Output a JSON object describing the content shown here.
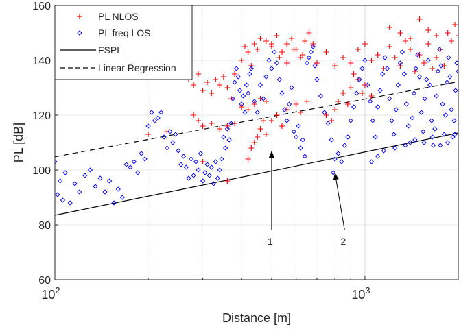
{
  "chart_data": {
    "type": "scatter",
    "title": "",
    "xlabel": "Distance [m]",
    "ylabel": "PL [dB]",
    "xscale": "log",
    "xlim": [
      100,
      2000
    ],
    "ylim": [
      60,
      160
    ],
    "grid": true,
    "legend_position": "top-left",
    "x_major_ticks": [
      {
        "value": 100,
        "base": "10",
        "exp": "2"
      },
      {
        "value": 1000,
        "base": "10",
        "exp": "3"
      }
    ],
    "y_ticks": [
      60,
      80,
      100,
      120,
      140,
      160
    ],
    "series": [
      {
        "name": "PL NLOS",
        "marker": "plus",
        "color": "#ff0000",
        "points": [
          [
            260,
            136
          ],
          [
            270,
            133
          ],
          [
            280,
            131
          ],
          [
            290,
            135
          ],
          [
            300,
            129
          ],
          [
            310,
            132
          ],
          [
            320,
            128
          ],
          [
            330,
            133
          ],
          [
            340,
            131
          ],
          [
            350,
            134
          ],
          [
            360,
            130
          ],
          [
            370,
            126
          ],
          [
            280,
            120
          ],
          [
            290,
            118
          ],
          [
            300,
            116
          ],
          [
            320,
            117
          ],
          [
            340,
            115
          ],
          [
            360,
            116
          ],
          [
            380,
            117
          ],
          [
            400,
            123
          ],
          [
            420,
            122
          ],
          [
            440,
            124
          ],
          [
            460,
            126
          ],
          [
            480,
            125
          ],
          [
            380,
            135
          ],
          [
            400,
            140
          ],
          [
            410,
            145
          ],
          [
            420,
            143
          ],
          [
            430,
            138
          ],
          [
            440,
            146
          ],
          [
            450,
            144
          ],
          [
            460,
            148
          ],
          [
            480,
            147
          ],
          [
            500,
            145
          ],
          [
            520,
            149
          ],
          [
            540,
            143
          ],
          [
            560,
            146
          ],
          [
            580,
            148
          ],
          [
            600,
            144
          ],
          [
            620,
            141
          ],
          [
            640,
            147
          ],
          [
            660,
            150
          ],
          [
            420,
            104
          ],
          [
            430,
            108
          ],
          [
            440,
            110
          ],
          [
            450,
            112
          ],
          [
            460,
            115
          ],
          [
            470,
            118
          ],
          [
            480,
            113
          ],
          [
            500,
            118
          ],
          [
            520,
            120
          ],
          [
            540,
            116
          ],
          [
            560,
            122
          ],
          [
            600,
            124
          ],
          [
            620,
            121
          ],
          [
            650,
            125
          ],
          [
            700,
            139
          ],
          [
            750,
            143
          ],
          [
            800,
            138
          ],
          [
            850,
            141
          ],
          [
            900,
            139
          ],
          [
            950,
            144
          ],
          [
            1000,
            146
          ],
          [
            1050,
            140
          ],
          [
            1100,
            142
          ],
          [
            1150,
            137
          ],
          [
            1200,
            145
          ],
          [
            1250,
            141
          ],
          [
            1300,
            138
          ],
          [
            1350,
            147
          ],
          [
            1400,
            144
          ],
          [
            1450,
            136
          ],
          [
            1500,
            142
          ],
          [
            1550,
            139
          ],
          [
            1600,
            146
          ],
          [
            1650,
            137
          ],
          [
            1700,
            141
          ],
          [
            1750,
            144
          ],
          [
            1800,
            138
          ],
          [
            1850,
            150
          ],
          [
            1900,
            147
          ],
          [
            1950,
            153
          ],
          [
            2000,
            149
          ],
          [
            1200,
            152
          ],
          [
            1300,
            150
          ],
          [
            1400,
            148
          ],
          [
            1500,
            155
          ],
          [
            1600,
            151
          ],
          [
            1700,
            149
          ],
          [
            750,
            120
          ],
          [
            780,
            118
          ],
          [
            800,
            122
          ],
          [
            820,
            125
          ],
          [
            850,
            128
          ],
          [
            880,
            124
          ],
          [
            900,
            130
          ],
          [
            920,
            135
          ],
          [
            950,
            133
          ],
          [
            980,
            128
          ],
          [
            1000,
            131
          ],
          [
            1050,
            127
          ],
          [
            500,
            146
          ],
          [
            530,
            141
          ],
          [
            560,
            139
          ],
          [
            590,
            144
          ],
          [
            630,
            142
          ],
          [
            680,
            146
          ],
          [
            200,
            113
          ],
          [
            230,
            114
          ],
          [
            360,
            96
          ],
          [
            300,
            103
          ]
        ]
      },
      {
        "name": "PL freq LOS",
        "marker": "diamond",
        "color": "#0000ff",
        "points": [
          [
            100,
            103
          ],
          [
            102,
            91
          ],
          [
            104,
            96
          ],
          [
            106,
            89
          ],
          [
            108,
            99
          ],
          [
            112,
            88
          ],
          [
            116,
            95
          ],
          [
            120,
            92
          ],
          [
            125,
            98
          ],
          [
            130,
            100
          ],
          [
            135,
            94
          ],
          [
            140,
            97
          ],
          [
            145,
            92
          ],
          [
            150,
            96
          ],
          [
            155,
            88
          ],
          [
            160,
            93
          ],
          [
            165,
            90
          ],
          [
            170,
            102
          ],
          [
            175,
            101
          ],
          [
            180,
            103
          ],
          [
            185,
            99
          ],
          [
            190,
            106
          ],
          [
            195,
            104
          ],
          [
            200,
            116
          ],
          [
            205,
            121
          ],
          [
            210,
            118
          ],
          [
            215,
            119
          ],
          [
            220,
            121
          ],
          [
            225,
            112
          ],
          [
            230,
            108
          ],
          [
            235,
            114
          ],
          [
            240,
            110
          ],
          [
            245,
            113
          ],
          [
            250,
            107
          ],
          [
            255,
            102
          ],
          [
            260,
            105
          ],
          [
            265,
            101
          ],
          [
            270,
            97
          ],
          [
            275,
            104
          ],
          [
            280,
            98
          ],
          [
            285,
            103
          ],
          [
            290,
            100
          ],
          [
            295,
            106
          ],
          [
            300,
            96
          ],
          [
            305,
            99
          ],
          [
            310,
            102
          ],
          [
            315,
            98
          ],
          [
            320,
            101
          ],
          [
            325,
            95
          ],
          [
            330,
            103
          ],
          [
            335,
            97
          ],
          [
            340,
            100
          ],
          [
            345,
            104
          ],
          [
            350,
            112
          ],
          [
            355,
            108
          ],
          [
            360,
            115
          ],
          [
            365,
            111
          ],
          [
            370,
            117
          ],
          [
            375,
            126
          ],
          [
            380,
            132
          ],
          [
            385,
            137
          ],
          [
            390,
            134
          ],
          [
            395,
            129
          ],
          [
            400,
            124
          ],
          [
            405,
            127
          ],
          [
            410,
            121
          ],
          [
            415,
            131
          ],
          [
            420,
            128
          ],
          [
            425,
            135
          ],
          [
            430,
            137
          ],
          [
            440,
            125
          ],
          [
            450,
            121
          ],
          [
            460,
            131
          ],
          [
            470,
            126
          ],
          [
            480,
            134
          ],
          [
            490,
            140
          ],
          [
            500,
            137
          ],
          [
            510,
            143
          ],
          [
            520,
            139
          ],
          [
            530,
            133
          ],
          [
            540,
            128
          ],
          [
            550,
            122
          ],
          [
            560,
            118
          ],
          [
            570,
            124
          ],
          [
            580,
            130
          ],
          [
            590,
            114
          ],
          [
            600,
            112
          ],
          [
            610,
            116
          ],
          [
            620,
            108
          ],
          [
            630,
            111
          ],
          [
            640,
            105
          ],
          [
            650,
            139
          ],
          [
            660,
            141
          ],
          [
            670,
            143
          ],
          [
            680,
            145
          ],
          [
            690,
            138
          ],
          [
            700,
            133
          ],
          [
            720,
            127
          ],
          [
            740,
            121
          ],
          [
            760,
            117
          ],
          [
            780,
            111
          ],
          [
            790,
            99
          ],
          [
            800,
            104
          ],
          [
            820,
            106
          ],
          [
            840,
            103
          ],
          [
            860,
            109
          ],
          [
            880,
            112
          ],
          [
            900,
            118
          ],
          [
            920,
            123
          ],
          [
            940,
            128
          ],
          [
            960,
            133
          ],
          [
            980,
            137
          ],
          [
            1000,
            140
          ],
          [
            1020,
            131
          ],
          [
            1040,
            125
          ],
          [
            1060,
            118
          ],
          [
            1080,
            112
          ],
          [
            1100,
            123
          ],
          [
            1120,
            129
          ],
          [
            1140,
            135
          ],
          [
            1160,
            141
          ],
          [
            1180,
            137
          ],
          [
            1200,
            126
          ],
          [
            1220,
            118
          ],
          [
            1240,
            113
          ],
          [
            1260,
            122
          ],
          [
            1280,
            131
          ],
          [
            1300,
            139
          ],
          [
            1320,
            143
          ],
          [
            1340,
            135
          ],
          [
            1360,
            124
          ],
          [
            1380,
            116
          ],
          [
            1400,
            110
          ],
          [
            1420,
            119
          ],
          [
            1440,
            128
          ],
          [
            1460,
            137
          ],
          [
            1480,
            142
          ],
          [
            1500,
            134
          ],
          [
            1520,
            121
          ],
          [
            1540,
            114
          ],
          [
            1560,
            126
          ],
          [
            1580,
            133
          ],
          [
            1600,
            140
          ],
          [
            1620,
            131
          ],
          [
            1640,
            118
          ],
          [
            1660,
            109
          ],
          [
            1680,
            115
          ],
          [
            1700,
            127
          ],
          [
            1720,
            136
          ],
          [
            1740,
            144
          ],
          [
            1760,
            138
          ],
          [
            1780,
            124
          ],
          [
            1800,
            113
          ],
          [
            1820,
            120
          ],
          [
            1840,
            132
          ],
          [
            1860,
            141
          ],
          [
            1880,
            134
          ],
          [
            1900,
            122
          ],
          [
            1920,
            112
          ],
          [
            1940,
            118
          ],
          [
            1960,
            129
          ],
          [
            1980,
            139
          ],
          [
            2000,
            136
          ],
          [
            1250,
            108
          ],
          [
            1350,
            109
          ],
          [
            1450,
            111
          ],
          [
            1550,
            110
          ],
          [
            1650,
            112
          ],
          [
            1750,
            109
          ],
          [
            1850,
            110
          ],
          [
            1950,
            113
          ],
          [
            1100,
            105
          ],
          [
            1150,
            107
          ],
          [
            1050,
            103
          ]
        ]
      }
    ],
    "lines": [
      {
        "name": "FSPL",
        "style": "solid",
        "points": [
          [
            100,
            83.5
          ],
          [
            2000,
            113.5
          ]
        ]
      },
      {
        "name": "Linear Regression",
        "style": "dashed",
        "points": [
          [
            100,
            104.8
          ],
          [
            2000,
            132.2
          ]
        ]
      }
    ],
    "annotations": [
      {
        "text": "1",
        "label_at": [
          500,
          74
        ],
        "arrow_to": [
          500,
          107
        ]
      },
      {
        "text": "2",
        "label_at": [
          860,
          74
        ],
        "arrow_to": [
          800,
          99
        ]
      }
    ]
  }
}
